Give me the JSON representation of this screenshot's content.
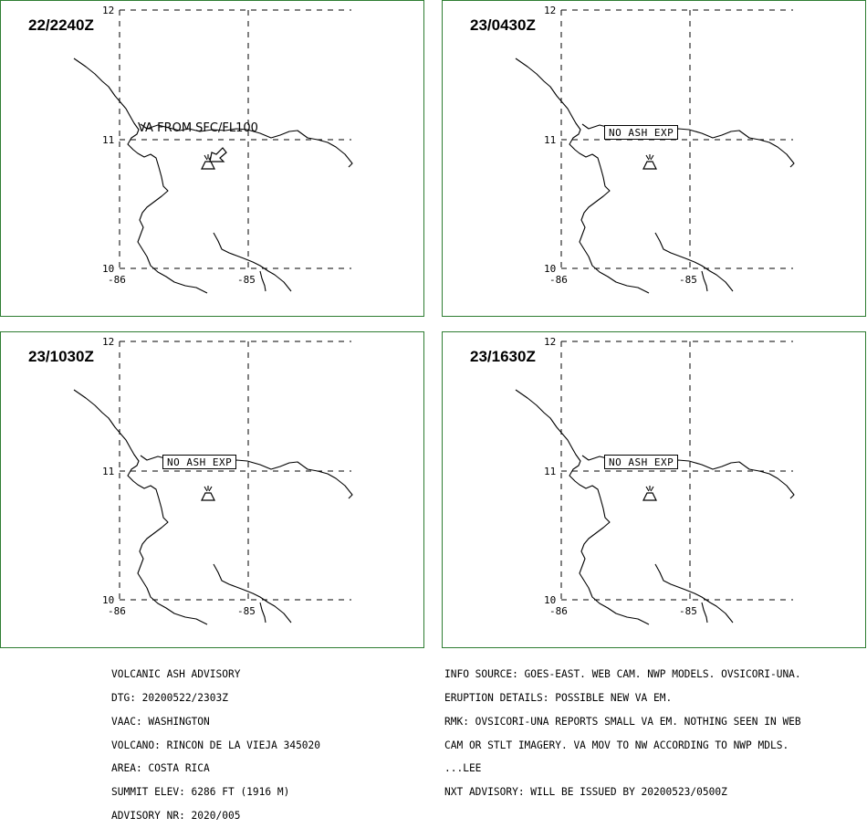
{
  "panels": [
    {
      "time": "22/2240Z",
      "label": "VA FROM SFC/FL100",
      "label_style": "plain",
      "arrow": true
    },
    {
      "time": "23/0430Z",
      "label": "NO ASH EXP",
      "label_style": "box",
      "arrow": false
    },
    {
      "time": "23/1030Z",
      "label": "NO ASH EXP",
      "label_style": "box",
      "arrow": false
    },
    {
      "time": "23/1630Z",
      "label": "NO ASH EXP",
      "label_style": "box",
      "arrow": false
    }
  ],
  "grid_labels": {
    "lat_top": "12",
    "lat_mid": "11",
    "lat_bottom": "10",
    "lon_left": "-86",
    "lon_right": "-85"
  },
  "advisory_left": [
    "VOLCANIC ASH ADVISORY",
    "DTG: 20200522/2303Z",
    "VAAC: WASHINGTON",
    "VOLCANO: RINCON DE LA VIEJA 345020",
    "AREA: COSTA RICA",
    "SUMMIT ELEV: 6286 FT (1916 M)",
    "ADVISORY NR: 2020/005"
  ],
  "advisory_right": [
    "INFO SOURCE: GOES-EAST. WEB CAM. NWP MODELS. OVSICORI-UNA.",
    "ERUPTION DETAILS: POSSIBLE NEW VA EM.",
    "RMK: OVSICORI-UNA REPORTS SMALL VA EM. NOTHING SEEN IN WEB",
    "CAM OR STLT IMAGERY. VA MOV TO NW ACCORDING TO NWP MDLS.",
    "...LEE",
    "NXT ADVISORY: WILL BE ISSUED BY 20200523/0500Z"
  ],
  "colors": {
    "panel_border": "#2e7d32",
    "lines": "#000000",
    "background": "#ffffff"
  },
  "icons": {
    "volcano": "volcano-symbol-icon",
    "ash_direction": "ash-direction-arrow-icon"
  }
}
